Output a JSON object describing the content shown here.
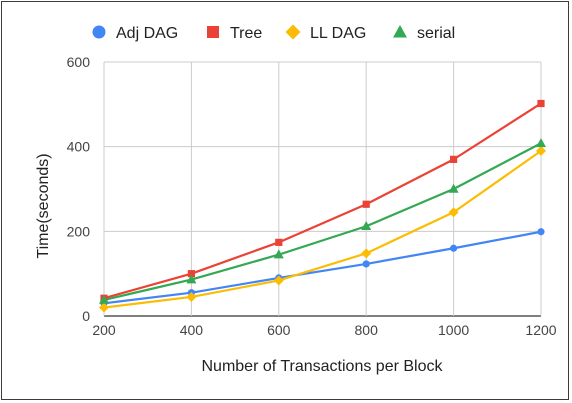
{
  "chart_data": {
    "type": "line",
    "title": "",
    "xlabel": "Number of Transactions per Block",
    "ylabel": "Time(seconds)",
    "x": [
      200,
      400,
      600,
      800,
      1000,
      1200
    ],
    "x_ticks": [
      "200",
      "400",
      "600",
      "800",
      "1000",
      "1200"
    ],
    "y_ticks": [
      "0",
      "200",
      "400",
      "600"
    ],
    "xlim": [
      200,
      1200
    ],
    "ylim": [
      0,
      600
    ],
    "grid": "horizontal and vertical",
    "legend_position": "top",
    "series": [
      {
        "name": "Adj DAG",
        "color": "#4285f4",
        "marker": "circle",
        "values": [
          30,
          55,
          90,
          123,
          160,
          199
        ]
      },
      {
        "name": "Tree",
        "color": "#ea4335",
        "marker": "square",
        "values": [
          42,
          100,
          174,
          264,
          370,
          502
        ]
      },
      {
        "name": "LL DAG",
        "color": "#fbbc04",
        "marker": "diamond",
        "values": [
          20,
          45,
          84,
          148,
          245,
          390
        ]
      },
      {
        "name": "serial",
        "color": "#34a853",
        "marker": "triangle",
        "values": [
          38,
          86,
          145,
          212,
          300,
          408
        ]
      }
    ]
  }
}
